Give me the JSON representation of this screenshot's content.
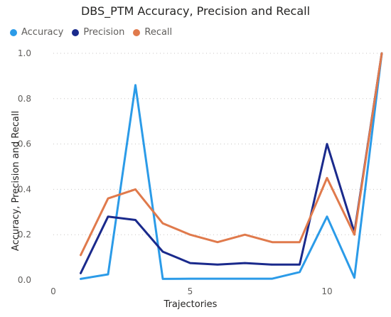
{
  "chart_data": {
    "type": "line",
    "title": "DBS_PTM Accuracy, Precision and Recall",
    "xlabel": "Trajectories",
    "ylabel": "Accuracy, Precision and Recall",
    "xlim": [
      0,
      12
    ],
    "ylim": [
      0,
      1.0
    ],
    "x_ticks": [
      0,
      5,
      10
    ],
    "x_tick_labels": [
      "0",
      "5",
      "10"
    ],
    "y_ticks": [
      0,
      0.2,
      0.4,
      0.6,
      0.8,
      1.0
    ],
    "y_tick_labels": [
      "0.0",
      "0.2",
      "0.4",
      "0.6",
      "0.8",
      "1.0"
    ],
    "grid": "horizontal dotted",
    "legend_position": "top-left",
    "x": [
      1,
      2,
      3,
      4,
      5,
      6,
      7,
      8,
      9,
      10,
      11,
      12
    ],
    "series": [
      {
        "name": "Accuracy",
        "color": "#2b9be8",
        "values": [
          0.005,
          0.025,
          0.86,
          0.005,
          0.006,
          0.006,
          0.006,
          0.006,
          0.035,
          0.28,
          0.01,
          1.0
        ]
      },
      {
        "name": "Precision",
        "color": "#1a2a8c",
        "values": [
          0.03,
          0.28,
          0.265,
          0.125,
          0.075,
          0.068,
          0.075,
          0.068,
          0.068,
          0.6,
          0.21,
          1.0
        ]
      },
      {
        "name": "Recall",
        "color": "#e07a4c",
        "values": [
          0.11,
          0.36,
          0.4,
          0.25,
          0.2,
          0.167,
          0.2,
          0.167,
          0.167,
          0.45,
          0.2,
          1.0
        ]
      }
    ]
  }
}
